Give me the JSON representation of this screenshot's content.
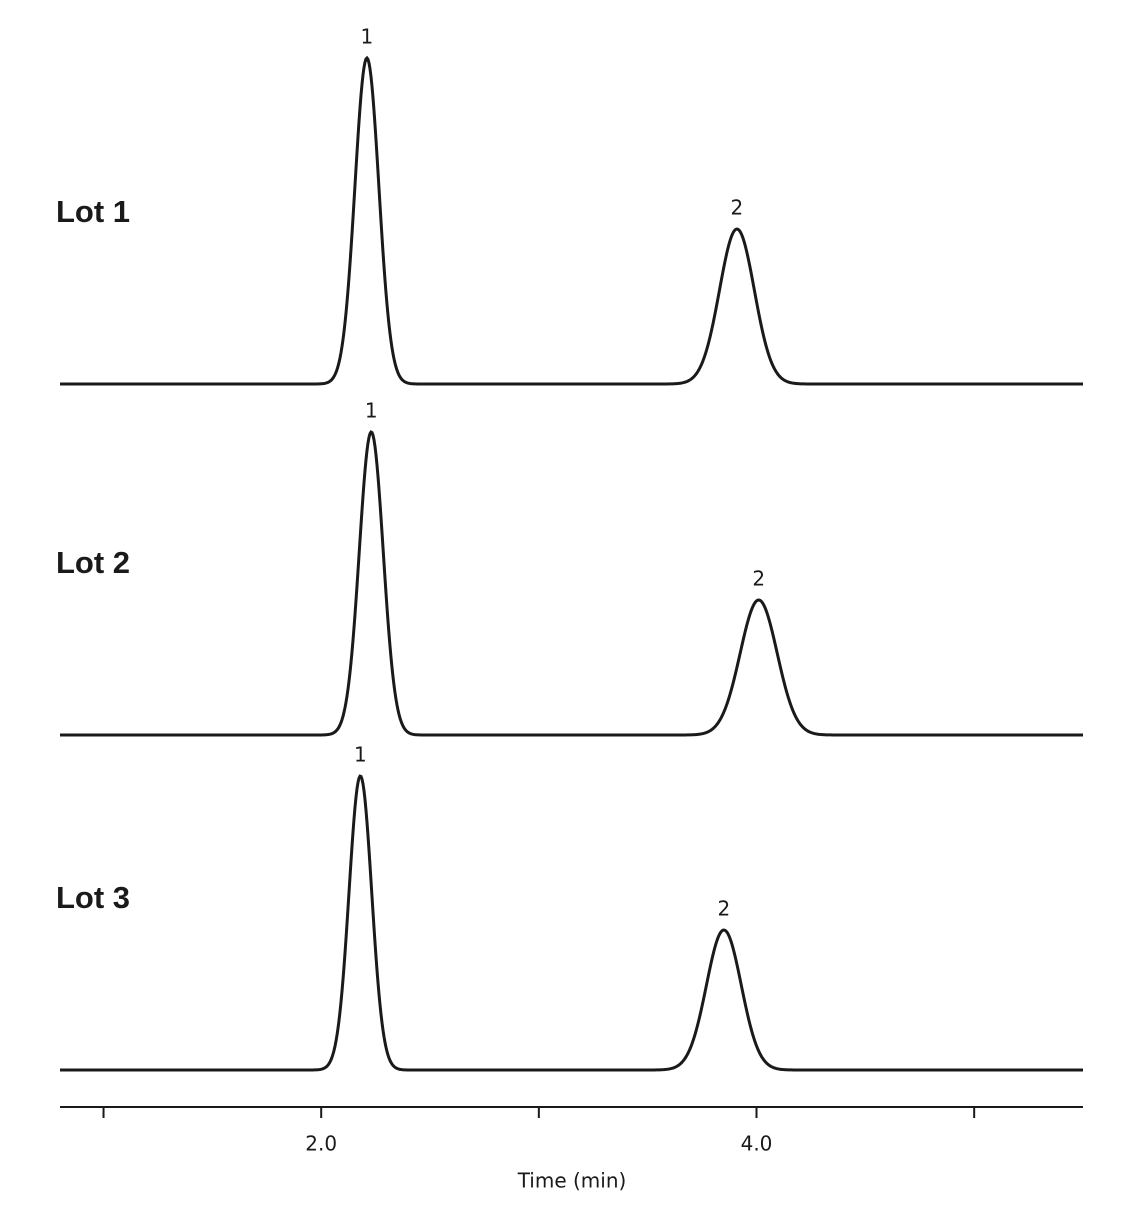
{
  "chart_data": {
    "type": "line",
    "x_label": "Time (min)",
    "xlim": [
      0.8,
      5.5
    ],
    "xticks": [
      {
        "value": 2,
        "label": "2.0"
      },
      {
        "value": 4,
        "label": "4.0"
      }
    ],
    "xminor_ticks": [
      1,
      3,
      5
    ],
    "ylim": [
      0,
      350
    ],
    "color": "#1a1a1a",
    "series": [
      {
        "name": "Lot 1",
        "peaks": [
          {
            "label": "1",
            "time": 2.21,
            "height": 326,
            "width": 0.055
          },
          {
            "label": "2",
            "time": 3.91,
            "height": 155,
            "width": 0.08
          }
        ]
      },
      {
        "name": "Lot 2",
        "peaks": [
          {
            "label": "1",
            "time": 2.23,
            "height": 303,
            "width": 0.055
          },
          {
            "label": "2",
            "time": 4.01,
            "height": 135,
            "width": 0.085
          }
        ]
      },
      {
        "name": "Lot 3",
        "peaks": [
          {
            "label": "1",
            "time": 2.18,
            "height": 294,
            "width": 0.052
          },
          {
            "label": "2",
            "time": 3.85,
            "height": 140,
            "width": 0.08
          }
        ]
      }
    ]
  }
}
